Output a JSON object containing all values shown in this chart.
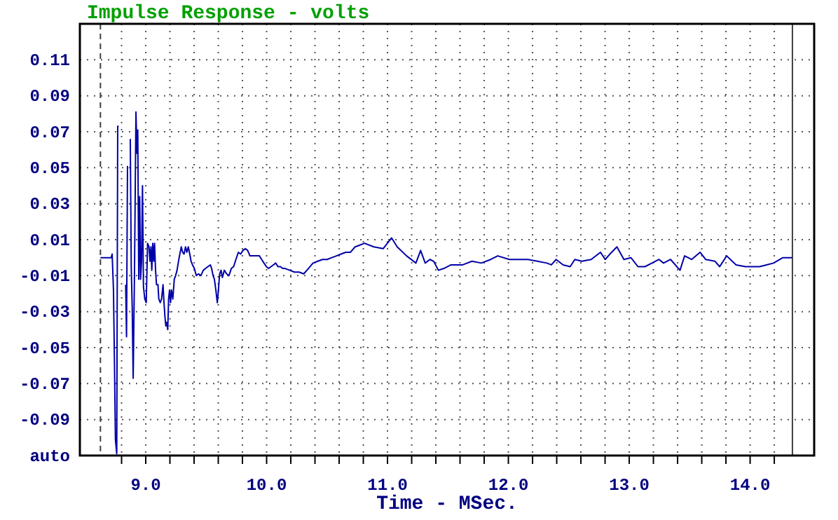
{
  "chart_data": {
    "type": "line",
    "title": "Impulse Response - volts",
    "xlabel": "Time - MSec.",
    "xlim": [
      8.455,
      14.53
    ],
    "ylim": [
      -0.11,
      0.13
    ],
    "xticks": [
      {
        "value": 8.8,
        "label": null
      },
      {
        "value": 9.0,
        "label": "9.0"
      },
      {
        "value": 9.2,
        "label": null
      },
      {
        "value": 9.4,
        "label": null
      },
      {
        "value": 9.6,
        "label": null
      },
      {
        "value": 9.8,
        "label": null
      },
      {
        "value": 10.0,
        "label": "10.0"
      },
      {
        "value": 10.2,
        "label": null
      },
      {
        "value": 10.4,
        "label": null
      },
      {
        "value": 10.6,
        "label": null
      },
      {
        "value": 10.8,
        "label": null
      },
      {
        "value": 11.0,
        "label": "11.0"
      },
      {
        "value": 11.2,
        "label": null
      },
      {
        "value": 11.4,
        "label": null
      },
      {
        "value": 11.6,
        "label": null
      },
      {
        "value": 11.8,
        "label": null
      },
      {
        "value": 12.0,
        "label": "12.0"
      },
      {
        "value": 12.2,
        "label": null
      },
      {
        "value": 12.4,
        "label": null
      },
      {
        "value": 12.6,
        "label": null
      },
      {
        "value": 12.8,
        "label": null
      },
      {
        "value": 13.0,
        "label": "13.0"
      },
      {
        "value": 13.2,
        "label": null
      },
      {
        "value": 13.4,
        "label": null
      },
      {
        "value": 13.6,
        "label": null
      },
      {
        "value": 13.8,
        "label": null
      },
      {
        "value": 14.0,
        "label": "14.0"
      },
      {
        "value": 14.2,
        "label": null
      }
    ],
    "yticks": [
      0.11,
      0.09,
      0.07,
      0.05,
      0.03,
      0.01,
      -0.01,
      -0.03,
      -0.05,
      -0.07,
      -0.09,
      {
        "value": -0.11,
        "label": "auto"
      }
    ],
    "grid": true,
    "marker": "none",
    "line_style": "solid",
    "ref_lines": [
      {
        "axis": "x",
        "value": 8.625,
        "label": null,
        "color": "#404040",
        "line_style": "dashed"
      },
      {
        "axis": "x",
        "value": 14.35,
        "label": null,
        "color": "#404040",
        "line_style": "solid"
      }
    ],
    "series": [
      {
        "color": "#0000a8",
        "x": [
          8.625,
          8.714,
          8.722,
          8.733,
          8.741,
          8.749,
          8.76,
          8.768,
          8.776,
          8.787,
          8.814,
          8.834,
          8.841,
          8.849,
          8.857,
          8.865,
          8.872,
          8.88,
          8.888,
          8.896,
          8.907,
          8.919,
          8.927,
          8.934,
          8.942,
          8.95,
          8.957,
          8.965,
          8.973,
          8.981,
          8.992,
          9.004,
          9.015,
          9.027,
          9.035,
          9.043,
          9.05,
          9.058,
          9.066,
          9.073,
          9.081,
          9.089,
          9.101,
          9.108,
          9.12,
          9.131,
          9.143,
          9.151,
          9.159,
          9.166,
          9.174,
          9.182,
          9.189,
          9.197,
          9.205,
          9.213,
          9.224,
          9.236,
          9.247,
          9.259,
          9.271,
          9.282,
          9.294,
          9.305,
          9.317,
          9.329,
          9.34,
          9.352,
          9.364,
          9.375,
          9.387,
          9.402,
          9.418,
          9.437,
          9.456,
          9.476,
          9.495,
          9.514,
          9.534,
          9.545,
          9.557,
          9.568,
          9.58,
          9.592,
          9.599,
          9.611,
          9.623,
          9.634,
          9.65,
          9.669,
          9.688,
          9.708,
          9.727,
          9.746,
          9.766,
          9.785,
          9.804,
          9.824,
          9.843,
          9.862,
          9.882,
          9.901,
          9.94,
          9.959,
          9.978,
          9.998,
          10.017,
          10.036,
          10.056,
          10.075,
          10.094,
          10.114,
          10.133,
          10.152,
          10.191,
          10.23,
          10.268,
          10.307,
          10.346,
          10.384,
          10.423,
          10.462,
          10.5,
          10.539,
          10.578,
          10.616,
          10.655,
          10.694,
          10.732,
          10.771,
          10.81,
          10.887,
          10.964,
          11.034,
          11.08,
          11.158,
          11.235,
          11.274,
          11.312,
          11.351,
          11.382,
          11.421,
          11.467,
          11.525,
          11.622,
          11.699,
          11.776,
          11.854,
          11.912,
          12.008,
          12.163,
          12.24,
          12.318,
          12.356,
          12.395,
          12.453,
          12.511,
          12.55,
          12.608,
          12.685,
          12.762,
          12.801,
          12.84,
          12.898,
          12.956,
          13.014,
          13.072,
          13.13,
          13.188,
          13.246,
          13.284,
          13.342,
          13.42,
          13.458,
          13.516,
          13.586,
          13.632,
          13.71,
          13.748,
          13.806,
          13.884,
          13.962,
          14.02,
          14.078,
          14.136,
          14.194,
          14.271,
          14.348
        ],
        "values": [
          0.0,
          0.0,
          0.002,
          -0.018,
          -0.057,
          -0.101,
          -0.109,
          0.073,
          0.073,
          null,
          null,
          -0.015,
          -0.044,
          0.051,
          null,
          null,
          0.066,
          -0.005,
          -0.028,
          -0.067,
          -0.007,
          0.081,
          0.058,
          0.071,
          -0.012,
          0.034,
          -0.012,
          -0.002,
          0.04,
          -0.016,
          -0.023,
          -0.025,
          0.008,
          0.006,
          -0.002,
          0.006,
          -0.007,
          0.008,
          -0.002,
          0.008,
          -0.007,
          -0.015,
          -0.015,
          -0.023,
          -0.025,
          -0.023,
          -0.015,
          -0.025,
          -0.033,
          -0.038,
          -0.036,
          -0.04,
          -0.023,
          -0.018,
          -0.025,
          -0.018,
          -0.023,
          -0.012,
          -0.01,
          -0.007,
          -0.002,
          0.002,
          0.006,
          0.003,
          0.002,
          0.006,
          0.003,
          0.006,
          0.002,
          -0.002,
          -0.004,
          -0.006,
          -0.01,
          -0.009,
          -0.01,
          -0.007,
          -0.006,
          -0.005,
          -0.004,
          -0.006,
          -0.01,
          -0.012,
          -0.018,
          -0.025,
          -0.02,
          -0.009,
          -0.007,
          -0.011,
          -0.007,
          -0.009,
          -0.01,
          -0.006,
          -0.005,
          -0.001,
          0.003,
          0.002,
          0.004,
          0.005,
          0.004,
          0.001,
          0.001,
          0.001,
          0.001,
          -0.001,
          -0.003,
          -0.005,
          -0.006,
          -0.005,
          -0.004,
          -0.003,
          -0.005,
          -0.005,
          -0.006,
          -0.006,
          -0.007,
          -0.008,
          -0.008,
          -0.009,
          -0.006,
          -0.003,
          -0.002,
          -0.001,
          -0.001,
          0.0,
          0.001,
          0.002,
          0.003,
          0.003,
          0.006,
          0.007,
          0.008,
          0.006,
          0.005,
          0.011,
          0.006,
          0.001,
          -0.003,
          0.004,
          -0.003,
          -0.001,
          -0.002,
          -0.007,
          -0.006,
          -0.004,
          -0.004,
          -0.002,
          -0.003,
          -0.001,
          0.001,
          -0.001,
          -0.001,
          -0.002,
          -0.003,
          -0.004,
          -0.001,
          -0.004,
          -0.005,
          -0.001,
          -0.002,
          -0.001,
          0.003,
          -0.001,
          0.002,
          0.006,
          -0.001,
          0.0,
          -0.005,
          -0.005,
          -0.003,
          -0.001,
          -0.003,
          -0.001,
          -0.007,
          0.001,
          -0.001,
          0.003,
          -0.001,
          -0.002,
          -0.005,
          0.001,
          -0.004,
          -0.005,
          -0.005,
          -0.005,
          -0.004,
          -0.003,
          0.0,
          0.0
        ]
      }
    ]
  }
}
